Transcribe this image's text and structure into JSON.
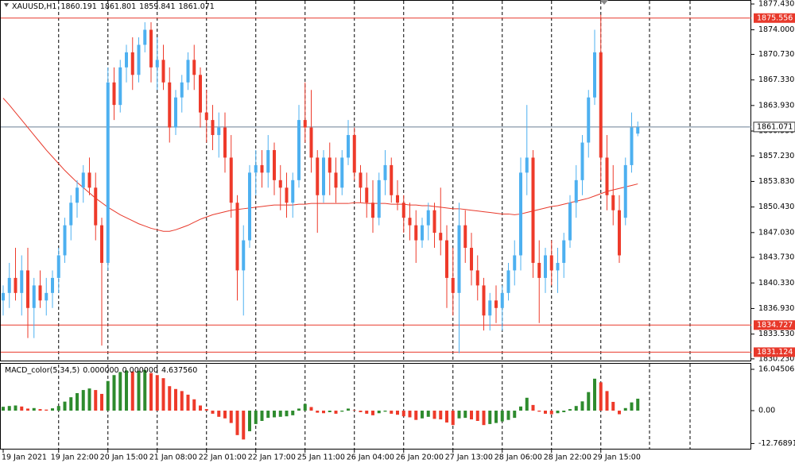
{
  "chart_data": {
    "type": "candlestick",
    "symbol": "XAUUSD,H1",
    "last_ohlc": [
      1860.191,
      1861.801,
      1859.841,
      1861.071
    ],
    "up_color": "#4db0f0",
    "down_color": "#ee3a2a",
    "ylim": [
      1829.9,
      1877.96
    ],
    "yticks": [
      {
        "value": 1877.43,
        "label": "1877.430"
      },
      {
        "value": 1874,
        "label": "1874.000"
      },
      {
        "value": 1870.73,
        "label": "1870.730"
      },
      {
        "value": 1867.33,
        "label": "1867.330"
      },
      {
        "value": 1863.93,
        "label": "1863.930"
      },
      {
        "value": 1860.53,
        "label": "1860.530"
      },
      {
        "value": 1857.23,
        "label": "1857.230"
      },
      {
        "value": 1853.83,
        "label": "1853.830"
      },
      {
        "value": 1850.43,
        "label": "1850.430"
      },
      {
        "value": 1847.03,
        "label": "1847.030"
      },
      {
        "value": 1843.73,
        "label": "1843.730"
      },
      {
        "value": 1840.33,
        "label": "1840.330"
      },
      {
        "value": 1836.93,
        "label": "1836.930"
      },
      {
        "value": 1833.53,
        "label": "1833.530"
      },
      {
        "value": 1830.23,
        "label": "1830.230"
      }
    ],
    "vgrid": true,
    "price_lines": [
      1875.556,
      1834.727,
      1831.124
    ],
    "price_line_color": "#e8392b",
    "current_price": 1861.071,
    "current_price_color": "#6b7f95",
    "categories": [
      "19 Jan 2021",
      null,
      null,
      null,
      null,
      null,
      null,
      null,
      null,
      "19 Jan 22:00",
      null,
      null,
      null,
      null,
      null,
      null,
      null,
      "20 Jan 15:00",
      null,
      null,
      null,
      null,
      null,
      null,
      null,
      "21 Jan 08:00",
      null,
      null,
      null,
      null,
      null,
      null,
      null,
      "22 Jan 01:00",
      null,
      null,
      null,
      null,
      null,
      null,
      null,
      "22 Jan 17:00",
      null,
      null,
      null,
      null,
      null,
      null,
      null,
      "25 Jan 11:00",
      null,
      null,
      null,
      null,
      null,
      null,
      null,
      "26 Jan 04:00",
      null,
      null,
      null,
      null,
      null,
      null,
      null,
      "26 Jan 20:00",
      null,
      null,
      null,
      null,
      null,
      null,
      null,
      "27 Jan 13:00",
      null,
      null,
      null,
      null,
      null,
      null,
      null,
      "28 Jan 06:00",
      null,
      null,
      null,
      null,
      null,
      null,
      null,
      "28 Jan 22:00",
      null,
      null,
      null,
      null,
      null,
      null,
      null,
      "29 Jan 15:00",
      null,
      null,
      null,
      null,
      null,
      null
    ],
    "open": [
      1838,
      1839,
      1841,
      1839,
      1842,
      1837,
      1840,
      1838,
      1839,
      1841,
      1844,
      1848,
      1851,
      1853,
      1855,
      1853,
      1848,
      1843,
      1867,
      1864,
      1869,
      1871,
      1868,
      1872,
      1874,
      1869,
      1870,
      1867,
      1861,
      1865,
      1867,
      1870,
      1868,
      1863,
      1862,
      1860,
      1861,
      1857,
      1851,
      1842,
      1846,
      1855,
      1856,
      1855,
      1858,
      1854,
      1853,
      1851,
      1854,
      1862,
      1861,
      1857,
      1852,
      1857,
      1855,
      1853,
      1857,
      1860,
      1855,
      1853,
      1851,
      1849,
      1854,
      1856,
      1852,
      1851,
      1849,
      1848,
      1846,
      1848,
      1850,
      1847,
      1846,
      1841,
      1839,
      1848,
      1845,
      1842,
      1840,
      1836,
      1838,
      1837,
      1839,
      1842,
      1844,
      1855,
      1857,
      1843,
      1841,
      1844,
      1842,
      1843,
      1846,
      1851,
      1854,
      1859,
      1865,
      1871,
      1857,
      1852,
      1850,
      1849,
      1856,
      1860.191
    ],
    "high": [
      1840,
      1843,
      1845,
      1844,
      1845,
      1841,
      1842,
      1841,
      1842,
      1845,
      1849,
      1852,
      1854,
      1856,
      1857,
      1855,
      1849,
      1869,
      1869,
      1870,
      1872,
      1873,
      1873,
      1875,
      1875,
      1873,
      1872,
      1869,
      1866,
      1868,
      1871,
      1872,
      1869,
      1866,
      1864,
      1863,
      1863,
      1860,
      1852,
      1848,
      1856,
      1858,
      1858,
      1860,
      1859,
      1856,
      1855,
      1855,
      1864,
      1867,
      1866,
      1858,
      1858,
      1859,
      1857,
      1858,
      1862,
      1861,
      1856,
      1855,
      1854,
      1855,
      1858,
      1857,
      1854,
      1852,
      1851,
      1850,
      1849,
      1851,
      1851,
      1853,
      1848,
      1845,
      1851,
      1850,
      1847,
      1844,
      1841,
      1839,
      1840,
      1840,
      1843,
      1846,
      1857,
      1864,
      1858,
      1846,
      1845,
      1846,
      1845,
      1847,
      1852,
      1856,
      1860,
      1866,
      1874,
      1876,
      1860,
      1856,
      1852,
      1857,
      1863,
      1861.801
    ],
    "low": [
      1836,
      1837,
      1838,
      1836,
      1833,
      1833,
      1837,
      1836,
      1837,
      1839,
      1843,
      1846,
      1849,
      1851,
      1852,
      1846,
      1832,
      1842,
      1862,
      1863,
      1867,
      1866,
      1867,
      1871,
      1867,
      1866,
      1866,
      1859,
      1860,
      1863,
      1866,
      1866,
      1861,
      1859,
      1858,
      1857,
      1855,
      1849,
      1838,
      1836,
      1845,
      1852,
      1853,
      1853,
      1852,
      1850,
      1849,
      1849,
      1853,
      1859,
      1855,
      1847,
      1851,
      1852,
      1851,
      1852,
      1856,
      1854,
      1851,
      1849,
      1847,
      1848,
      1852,
      1851,
      1850,
      1847,
      1846,
      1843,
      1845,
      1846,
      1845,
      1844,
      1837,
      1836,
      1831,
      1843,
      1840,
      1838,
      1834,
      1834,
      1835,
      1834,
      1838,
      1840,
      1842,
      1852,
      1841,
      1835,
      1839,
      1840,
      1839,
      1841,
      1845,
      1849,
      1852,
      1857,
      1864,
      1854,
      1850,
      1848,
      1843,
      1848,
      1855,
      1859.841
    ],
    "close": [
      1839,
      1841,
      1839,
      1842,
      1837,
      1840,
      1838,
      1839,
      1841,
      1844,
      1848,
      1851,
      1853,
      1855,
      1853,
      1848,
      1843,
      1867,
      1864,
      1869,
      1871,
      1868,
      1872,
      1874,
      1869,
      1870,
      1867,
      1861,
      1865,
      1867,
      1870,
      1868,
      1863,
      1862,
      1860,
      1861,
      1857,
      1851,
      1842,
      1846,
      1855,
      1856,
      1855,
      1858,
      1854,
      1853,
      1851,
      1854,
      1862,
      1861,
      1857,
      1852,
      1857,
      1855,
      1853,
      1857,
      1860,
      1855,
      1853,
      1851,
      1849,
      1854,
      1856,
      1852,
      1851,
      1849,
      1848,
      1846,
      1848,
      1850,
      1847,
      1846,
      1841,
      1839,
      1848,
      1845,
      1842,
      1840,
      1836,
      1838,
      1837,
      1839,
      1842,
      1844,
      1855,
      1857,
      1843,
      1841,
      1844,
      1842,
      1843,
      1846,
      1851,
      1854,
      1859,
      1865,
      1871,
      1857,
      1852,
      1850,
      1844,
      1856,
      1861,
      1861.071
    ],
    "ma": {
      "color": "#e8392b",
      "values": [
        1864.9,
        1864.0,
        1863.0,
        1862.0,
        1861.0,
        1860.0,
        1859.0,
        1858.0,
        1857.1,
        1856.2,
        1855.3,
        1854.5,
        1853.7,
        1853.0,
        1852.3,
        1851.6,
        1851.0,
        1850.4,
        1849.9,
        1849.4,
        1849.0,
        1848.6,
        1848.2,
        1847.9,
        1847.6,
        1847.4,
        1847.2,
        1847.2,
        1847.4,
        1847.7,
        1848.0,
        1848.4,
        1848.8,
        1849.1,
        1849.4,
        1849.6,
        1849.8,
        1850.0,
        1850.1,
        1850.2,
        1850.3,
        1850.4,
        1850.5,
        1850.6,
        1850.7,
        1850.7,
        1850.7,
        1850.7,
        1850.8,
        1850.8,
        1850.9,
        1850.9,
        1850.9,
        1850.9,
        1850.9,
        1850.9,
        1850.9,
        1851.0,
        1851.0,
        1850.9,
        1850.9,
        1850.9,
        1850.9,
        1850.8,
        1850.8,
        1850.8,
        1850.7,
        1850.7,
        1850.6,
        1850.6,
        1850.5,
        1850.4,
        1850.3,
        1850.2,
        1850.2,
        1850.1,
        1850.0,
        1849.9,
        1849.8,
        1849.7,
        1849.6,
        1849.5,
        1849.5,
        1849.4,
        1849.5,
        1849.7,
        1849.9,
        1850.1,
        1850.3,
        1850.5,
        1850.6,
        1850.8,
        1851.0,
        1851.2,
        1851.4,
        1851.6,
        1851.9,
        1852.2,
        1852.5,
        1852.7,
        1852.9,
        1853.1,
        1853.3,
        1853.5
      ]
    },
    "macd": {
      "title": "MACD_color(5,34,5)",
      "readout": [
        "0.000000",
        "0.000000",
        "4.637560"
      ],
      "up_color": "#2e8b2e",
      "down_color": "#ee3a2a",
      "ylim": [
        -15.1,
        18.2
      ],
      "yticks": [
        16.045061,
        {
          "value": 0,
          "label": "0.00"
        },
        -12.768911
      ],
      "values": [
        1.5,
        1.8,
        2.0,
        1.6,
        0.8,
        1.0,
        0.6,
        0.4,
        0.9,
        1.8,
        3.5,
        5.2,
        6.8,
        8.0,
        8.6,
        8.0,
        6.5,
        11.5,
        13.8,
        15.0,
        15.6,
        15.2,
        15.5,
        15.8,
        14.6,
        13.8,
        12.6,
        9.5,
        8.4,
        7.6,
        6.2,
        4.4,
        2.0,
        0.6,
        -1.2,
        -2.4,
        -3.0,
        -4.8,
        -9.5,
        -11.2,
        -8.0,
        -5.2,
        -4.0,
        -2.8,
        -2.6,
        -2.4,
        -2.2,
        -1.8,
        0.8,
        2.6,
        1.4,
        -0.8,
        -1.0,
        -0.6,
        -1.2,
        -0.4,
        0.8,
        0.2,
        -0.6,
        -1.2,
        -1.8,
        -1.0,
        -0.4,
        -1.2,
        -1.6,
        -2.2,
        -2.6,
        -3.6,
        -3.0,
        -2.4,
        -3.2,
        -3.4,
        -4.6,
        -5.6,
        -3.0,
        -2.8,
        -3.4,
        -4.0,
        -5.6,
        -5.2,
        -4.8,
        -4.2,
        -3.6,
        -2.8,
        1.6,
        5.0,
        2.2,
        -0.4,
        -1.2,
        -1.4,
        -1.0,
        -0.6,
        0.6,
        1.8,
        3.6,
        7.2,
        12.4,
        11.0,
        7.6,
        3.4,
        -1.4,
        1.0,
        3.2,
        4.63756
      ]
    }
  }
}
